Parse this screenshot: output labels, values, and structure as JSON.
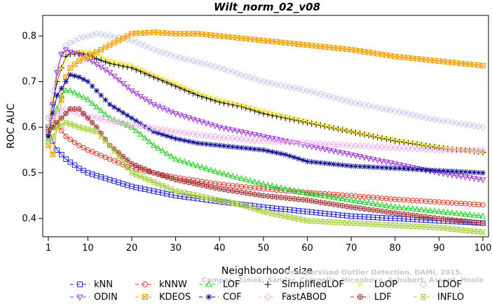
{
  "chart_data": {
    "type": "line",
    "title": "Wilt_norm_02_v08",
    "xlabel": "Neighborhood size",
    "ylabel": "ROC AUC",
    "xlim": [
      1,
      100
    ],
    "ylim": [
      0.36,
      0.845
    ],
    "x_ticks": [
      1,
      10,
      20,
      30,
      40,
      50,
      60,
      70,
      80,
      90,
      100
    ],
    "y_ticks": [
      0.4,
      0.5,
      0.6,
      0.7,
      0.8
    ],
    "grid": false,
    "legend_position": "bottom",
    "watermark": [
      "Unsupervised Outlier Detection. DAMI, 2015.",
      "Campos, Zimek, Sander, Campello, Micenkova, Schubert, Assent, Houle"
    ],
    "series": [
      {
        "name": "kNN",
        "color": "#1f1fd1",
        "marker": "square",
        "points": [
          [
            1,
            0.6
          ],
          [
            2,
            0.57
          ],
          [
            3,
            0.55
          ],
          [
            5,
            0.53
          ],
          [
            8,
            0.51
          ],
          [
            10,
            0.5
          ],
          [
            15,
            0.485
          ],
          [
            20,
            0.47
          ],
          [
            25,
            0.46
          ],
          [
            30,
            0.45
          ],
          [
            40,
            0.437
          ],
          [
            50,
            0.425
          ],
          [
            60,
            0.415
          ],
          [
            70,
            0.405
          ],
          [
            80,
            0.4
          ],
          [
            90,
            0.395
          ],
          [
            100,
            0.39
          ]
        ]
      },
      {
        "name": "kNNW",
        "color": "#d63a2a",
        "marker": "circle",
        "points": [
          [
            1,
            0.62
          ],
          [
            2,
            0.615
          ],
          [
            3,
            0.605
          ],
          [
            5,
            0.58
          ],
          [
            8,
            0.56
          ],
          [
            10,
            0.55
          ],
          [
            15,
            0.53
          ],
          [
            20,
            0.51
          ],
          [
            25,
            0.5
          ],
          [
            30,
            0.49
          ],
          [
            40,
            0.475
          ],
          [
            50,
            0.465
          ],
          [
            60,
            0.457
          ],
          [
            70,
            0.45
          ],
          [
            80,
            0.442
          ],
          [
            90,
            0.436
          ],
          [
            100,
            0.43
          ]
        ]
      },
      {
        "name": "LOF",
        "color": "#22cc22",
        "marker": "triangle-up",
        "points": [
          [
            1,
            0.575
          ],
          [
            2,
            0.6
          ],
          [
            3,
            0.64
          ],
          [
            4,
            0.67
          ],
          [
            5,
            0.68
          ],
          [
            6,
            0.68
          ],
          [
            8,
            0.67
          ],
          [
            10,
            0.66
          ],
          [
            15,
            0.62
          ],
          [
            20,
            0.6
          ],
          [
            25,
            0.56
          ],
          [
            30,
            0.53
          ],
          [
            40,
            0.5
          ],
          [
            50,
            0.475
          ],
          [
            60,
            0.455
          ],
          [
            70,
            0.44
          ],
          [
            80,
            0.425
          ],
          [
            90,
            0.415
          ],
          [
            100,
            0.405
          ]
        ]
      },
      {
        "name": "SimplifiedLOF",
        "color": "#000000",
        "marker": "plus",
        "points": [
          [
            1,
            0.6
          ],
          [
            2,
            0.65
          ],
          [
            3,
            0.7
          ],
          [
            4,
            0.73
          ],
          [
            5,
            0.755
          ],
          [
            6,
            0.76
          ],
          [
            8,
            0.762
          ],
          [
            10,
            0.76
          ],
          [
            12,
            0.75
          ],
          [
            15,
            0.74
          ],
          [
            20,
            0.73
          ],
          [
            25,
            0.71
          ],
          [
            30,
            0.69
          ],
          [
            35,
            0.67
          ],
          [
            40,
            0.655
          ],
          [
            45,
            0.645
          ],
          [
            50,
            0.63
          ],
          [
            60,
            0.61
          ],
          [
            70,
            0.59
          ],
          [
            80,
            0.57
          ],
          [
            90,
            0.555
          ],
          [
            100,
            0.545
          ]
        ]
      },
      {
        "name": "LoOP",
        "color": "#f0e020",
        "marker": "cross",
        "points": [
          [
            1,
            0.6
          ],
          [
            2,
            0.66
          ],
          [
            3,
            0.705
          ],
          [
            4,
            0.73
          ],
          [
            5,
            0.75
          ],
          [
            6,
            0.76
          ],
          [
            8,
            0.765
          ],
          [
            10,
            0.765
          ],
          [
            12,
            0.76
          ],
          [
            15,
            0.745
          ],
          [
            20,
            0.735
          ],
          [
            25,
            0.715
          ],
          [
            30,
            0.695
          ],
          [
            35,
            0.675
          ],
          [
            40,
            0.66
          ],
          [
            45,
            0.648
          ],
          [
            50,
            0.635
          ],
          [
            60,
            0.612
          ],
          [
            70,
            0.59
          ],
          [
            80,
            0.572
          ],
          [
            90,
            0.556
          ],
          [
            100,
            0.545
          ]
        ]
      },
      {
        "name": "LDOF",
        "color": "#c8c8f5",
        "marker": "diamond",
        "points": [
          [
            1,
            0.62
          ],
          [
            2,
            0.68
          ],
          [
            3,
            0.73
          ],
          [
            4,
            0.76
          ],
          [
            5,
            0.78
          ],
          [
            8,
            0.795
          ],
          [
            10,
            0.8
          ],
          [
            12,
            0.805
          ],
          [
            15,
            0.8
          ],
          [
            20,
            0.79
          ],
          [
            25,
            0.77
          ],
          [
            30,
            0.755
          ],
          [
            40,
            0.73
          ],
          [
            50,
            0.7
          ],
          [
            60,
            0.68
          ],
          [
            70,
            0.655
          ],
          [
            80,
            0.635
          ],
          [
            90,
            0.615
          ],
          [
            100,
            0.6
          ]
        ]
      },
      {
        "name": "ODIN",
        "color": "#9a30d0",
        "marker": "triangle-down",
        "points": [
          [
            1,
            0.58
          ],
          [
            2,
            0.65
          ],
          [
            3,
            0.72
          ],
          [
            4,
            0.76
          ],
          [
            5,
            0.77
          ],
          [
            6,
            0.765
          ],
          [
            8,
            0.76
          ],
          [
            10,
            0.75
          ],
          [
            15,
            0.72
          ],
          [
            20,
            0.68
          ],
          [
            25,
            0.65
          ],
          [
            30,
            0.63
          ],
          [
            40,
            0.6
          ],
          [
            50,
            0.58
          ],
          [
            60,
            0.56
          ],
          [
            70,
            0.54
          ],
          [
            80,
            0.52
          ],
          [
            90,
            0.5
          ],
          [
            100,
            0.485
          ]
        ]
      },
      {
        "name": "KDEOS",
        "color": "#f0a000",
        "marker": "square-x",
        "points": [
          [
            1,
            0.56
          ],
          [
            2,
            0.54
          ],
          [
            3,
            0.6
          ],
          [
            4,
            0.66
          ],
          [
            5,
            0.71
          ],
          [
            6,
            0.73
          ],
          [
            8,
            0.745
          ],
          [
            10,
            0.755
          ],
          [
            12,
            0.765
          ],
          [
            15,
            0.78
          ],
          [
            18,
            0.795
          ],
          [
            20,
            0.805
          ],
          [
            25,
            0.808
          ],
          [
            30,
            0.805
          ],
          [
            35,
            0.805
          ],
          [
            40,
            0.8
          ],
          [
            50,
            0.79
          ],
          [
            60,
            0.78
          ],
          [
            70,
            0.77
          ],
          [
            80,
            0.755
          ],
          [
            90,
            0.745
          ],
          [
            100,
            0.735
          ]
        ]
      },
      {
        "name": "COF",
        "color": "#0c0c90",
        "marker": "asterisk",
        "points": [
          [
            1,
            0.58
          ],
          [
            2,
            0.63
          ],
          [
            3,
            0.67
          ],
          [
            5,
            0.7
          ],
          [
            6,
            0.715
          ],
          [
            8,
            0.71
          ],
          [
            10,
            0.7
          ],
          [
            15,
            0.65
          ],
          [
            20,
            0.62
          ],
          [
            25,
            0.59
          ],
          [
            30,
            0.575
          ],
          [
            35,
            0.565
          ],
          [
            40,
            0.56
          ],
          [
            45,
            0.555
          ],
          [
            50,
            0.55
          ],
          [
            55,
            0.54
          ],
          [
            60,
            0.525
          ],
          [
            65,
            0.52
          ],
          [
            70,
            0.515
          ],
          [
            80,
            0.51
          ],
          [
            90,
            0.505
          ],
          [
            100,
            0.5
          ]
        ]
      },
      {
        "name": "FastABOD",
        "color": "#f0b0f0",
        "marker": "diamond-filled",
        "points": [
          [
            1,
            0.6
          ],
          [
            2,
            0.62
          ],
          [
            3,
            0.63
          ],
          [
            5,
            0.64
          ],
          [
            8,
            0.63
          ],
          [
            10,
            0.625
          ],
          [
            15,
            0.615
          ],
          [
            20,
            0.605
          ],
          [
            30,
            0.59
          ],
          [
            40,
            0.578
          ],
          [
            50,
            0.57
          ],
          [
            60,
            0.565
          ],
          [
            70,
            0.56
          ],
          [
            80,
            0.555
          ],
          [
            90,
            0.55
          ],
          [
            100,
            0.55
          ]
        ]
      },
      {
        "name": "LDF",
        "color": "#a03030",
        "marker": "circle-plus",
        "points": [
          [
            1,
            0.59
          ],
          [
            2,
            0.6
          ],
          [
            3,
            0.61
          ],
          [
            5,
            0.63
          ],
          [
            6,
            0.64
          ],
          [
            8,
            0.64
          ],
          [
            10,
            0.62
          ],
          [
            12,
            0.6
          ],
          [
            15,
            0.56
          ],
          [
            20,
            0.52
          ],
          [
            25,
            0.5
          ],
          [
            30,
            0.485
          ],
          [
            40,
            0.465
          ],
          [
            50,
            0.45
          ],
          [
            60,
            0.44
          ],
          [
            70,
            0.425
          ],
          [
            80,
            0.412
          ],
          [
            90,
            0.4
          ],
          [
            100,
            0.39
          ]
        ]
      },
      {
        "name": "INFLO",
        "color": "#a6d040",
        "marker": "hourglass",
        "points": [
          [
            1,
            0.57
          ],
          [
            2,
            0.58
          ],
          [
            3,
            0.6
          ],
          [
            5,
            0.61
          ],
          [
            8,
            0.6
          ],
          [
            10,
            0.595
          ],
          [
            12,
            0.59
          ],
          [
            15,
            0.56
          ],
          [
            20,
            0.5
          ],
          [
            25,
            0.48
          ],
          [
            30,
            0.46
          ],
          [
            35,
            0.45
          ],
          [
            40,
            0.44
          ],
          [
            45,
            0.43
          ],
          [
            50,
            0.415
          ],
          [
            55,
            0.405
          ],
          [
            60,
            0.395
          ],
          [
            70,
            0.39
          ],
          [
            80,
            0.385
          ],
          [
            90,
            0.38
          ],
          [
            100,
            0.37
          ]
        ]
      }
    ]
  }
}
